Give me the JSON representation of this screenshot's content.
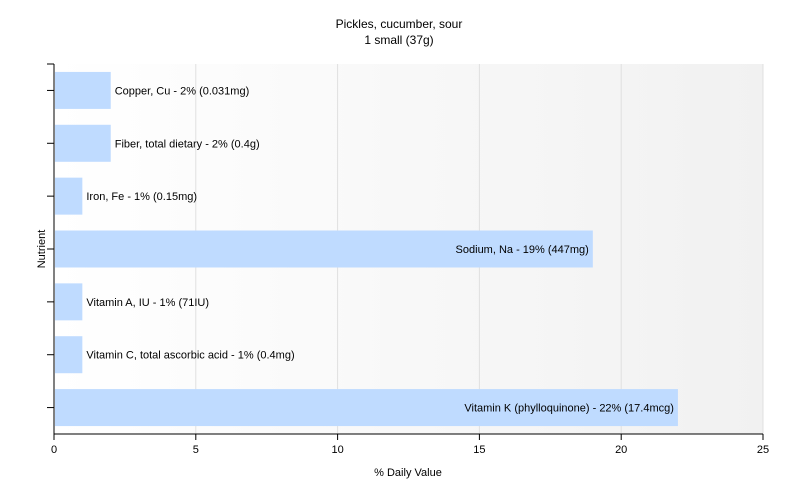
{
  "chart_data": {
    "type": "bar",
    "orientation": "horizontal",
    "title": "Pickles, cucumber, sour",
    "subtitle": "1 small (37g)",
    "xlabel": "% Daily Value",
    "ylabel": "Nutrient",
    "xlim": [
      0,
      25
    ],
    "xticks": [
      0,
      5,
      10,
      15,
      20,
      25
    ],
    "xtick_labels": [
      "0",
      "5",
      "10",
      "15",
      "20",
      "25"
    ],
    "grid": true,
    "legend": "none",
    "categories": [
      "Copper, Cu",
      "Fiber, total dietary",
      "Iron, Fe",
      "Sodium, Na",
      "Vitamin A, IU",
      "Vitamin C, total ascorbic acid",
      "Vitamin K (phylloquinone)"
    ],
    "values": [
      2,
      2,
      1,
      19,
      1,
      1,
      22
    ],
    "labels": [
      "Copper, Cu - 2% (0.031mg)",
      "Fiber, total dietary - 2% (0.4g)",
      "Iron, Fe - 1% (0.15mg)",
      "Sodium, Na - 19% (447mg)",
      "Vitamin A, IU - 1% (71IU)",
      "Vitamin C, total ascorbic acid - 1% (0.4mg)",
      "Vitamin K (phylloquinone) - 22% (17.4mcg)"
    ],
    "colors": {
      "bar": "#bfdbff",
      "axis": "#000000",
      "grid": "#e0e0e0"
    }
  }
}
